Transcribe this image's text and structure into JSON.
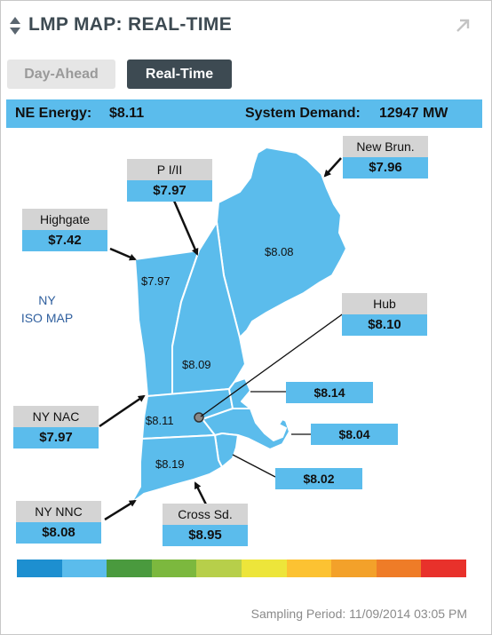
{
  "header": {
    "title": "LMP MAP: REAL-TIME"
  },
  "tabs": [
    {
      "label": "Day-Ahead",
      "active": false
    },
    {
      "label": "Real-Time",
      "active": true
    }
  ],
  "status": {
    "ne_energy_label": "NE Energy:",
    "ne_energy_value": "$8.11",
    "demand_label": "System Demand:",
    "demand_value": "12947 MW"
  },
  "ny_label": {
    "line1": "NY",
    "line2": "ISO MAP"
  },
  "boxes": {
    "new_brun": {
      "label": "New Brun.",
      "value": "$7.96"
    },
    "pi_ii": {
      "label": "P I/II",
      "value": "$7.97"
    },
    "highgate": {
      "label": "Highgate",
      "value": "$7.42"
    },
    "hub": {
      "label": "Hub",
      "value": "$8.10"
    },
    "ny_nac": {
      "label": "NY NAC",
      "value": "$7.97"
    },
    "ny_nnc": {
      "label": "NY NNC",
      "value": "$8.08"
    },
    "cross_sd": {
      "label": "Cross Sd.",
      "value": "$8.95"
    }
  },
  "zone_values": {
    "maine": "$8.08",
    "vermont": "$7.97",
    "new_hampshire": "$8.09",
    "western_ma": "$8.11",
    "connecticut": "$8.19",
    "ne_mass": "$8.14",
    "se_mass": "$8.04",
    "rhode_island": "$8.02"
  },
  "legend_colors": [
    "#1d8fd0",
    "#5bbcec",
    "#4a9a3e",
    "#7cb83e",
    "#b7cf4a",
    "#ede53a",
    "#fcc232",
    "#f3a12a",
    "#ef7c27",
    "#e8312b"
  ],
  "footer": {
    "sampling": "Sampling Period: 11/09/2014 03:05 PM"
  }
}
